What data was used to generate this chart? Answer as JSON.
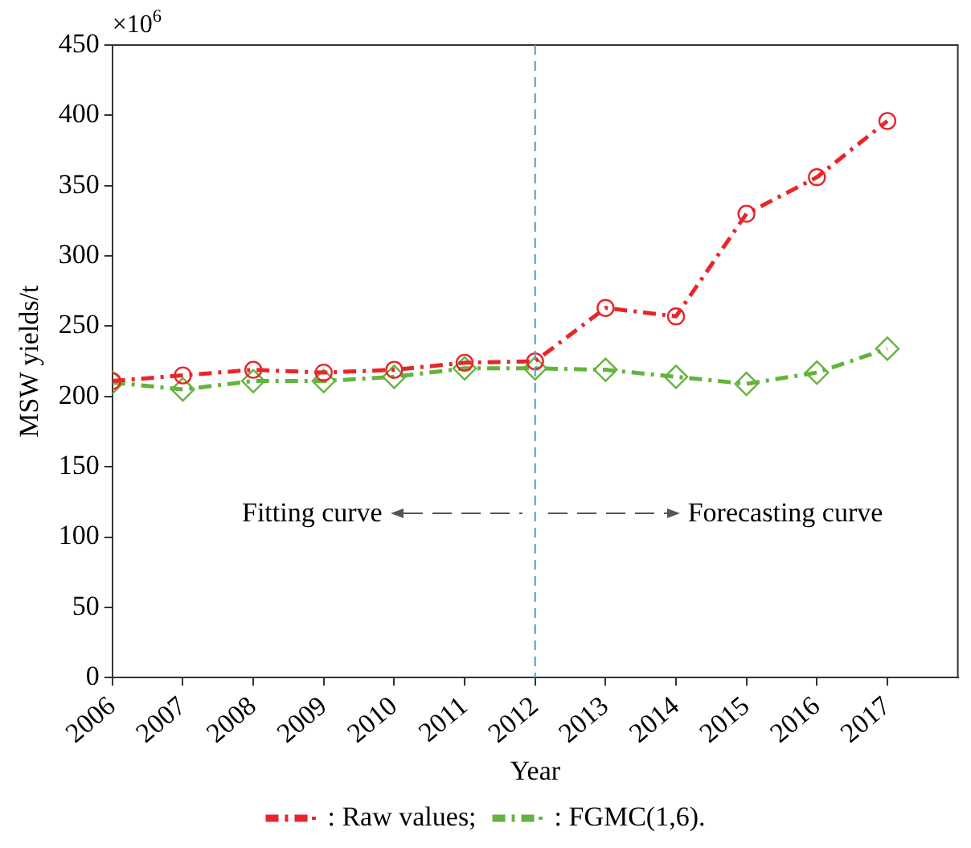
{
  "chart_data": {
    "type": "line",
    "xlabel": "Year",
    "ylabel": "MSW yields/t",
    "x": [
      2006,
      2007,
      2008,
      2009,
      2010,
      2011,
      2012,
      2013,
      2014,
      2015,
      2016,
      2017
    ],
    "xlim": [
      2006,
      2018
    ],
    "xticks": [
      2006,
      2007,
      2008,
      2009,
      2010,
      2011,
      2012,
      2013,
      2014,
      2015,
      2016,
      2017
    ],
    "ylim": [
      0,
      450
    ],
    "yticks": [
      0,
      50,
      100,
      150,
      200,
      250,
      300,
      350,
      400,
      450
    ],
    "series": [
      {
        "name": ": Raw values;",
        "color": "#e8262a",
        "marker": "circle",
        "line_style": "dashed",
        "values": [
          211,
          215,
          219,
          217,
          219,
          224,
          225,
          263,
          257,
          330,
          356,
          396
        ]
      },
      {
        "name": ": FGMC(1,6).",
        "color": "#63b33e",
        "marker": "diamond",
        "line_style": "dashed",
        "values": [
          210,
          205,
          211,
          211,
          214,
          220,
          220,
          219,
          214,
          209,
          217,
          234
        ]
      }
    ],
    "ref_lines": [
      {
        "axis": "x",
        "value": 2012,
        "color": "#4a9bd6",
        "line_style": "dashed"
      }
    ],
    "annotations": [
      "×10$^{6}$",
      "Fitting curve",
      "Forecasting curve"
    ],
    "grid": false,
    "legend": "bottom"
  }
}
